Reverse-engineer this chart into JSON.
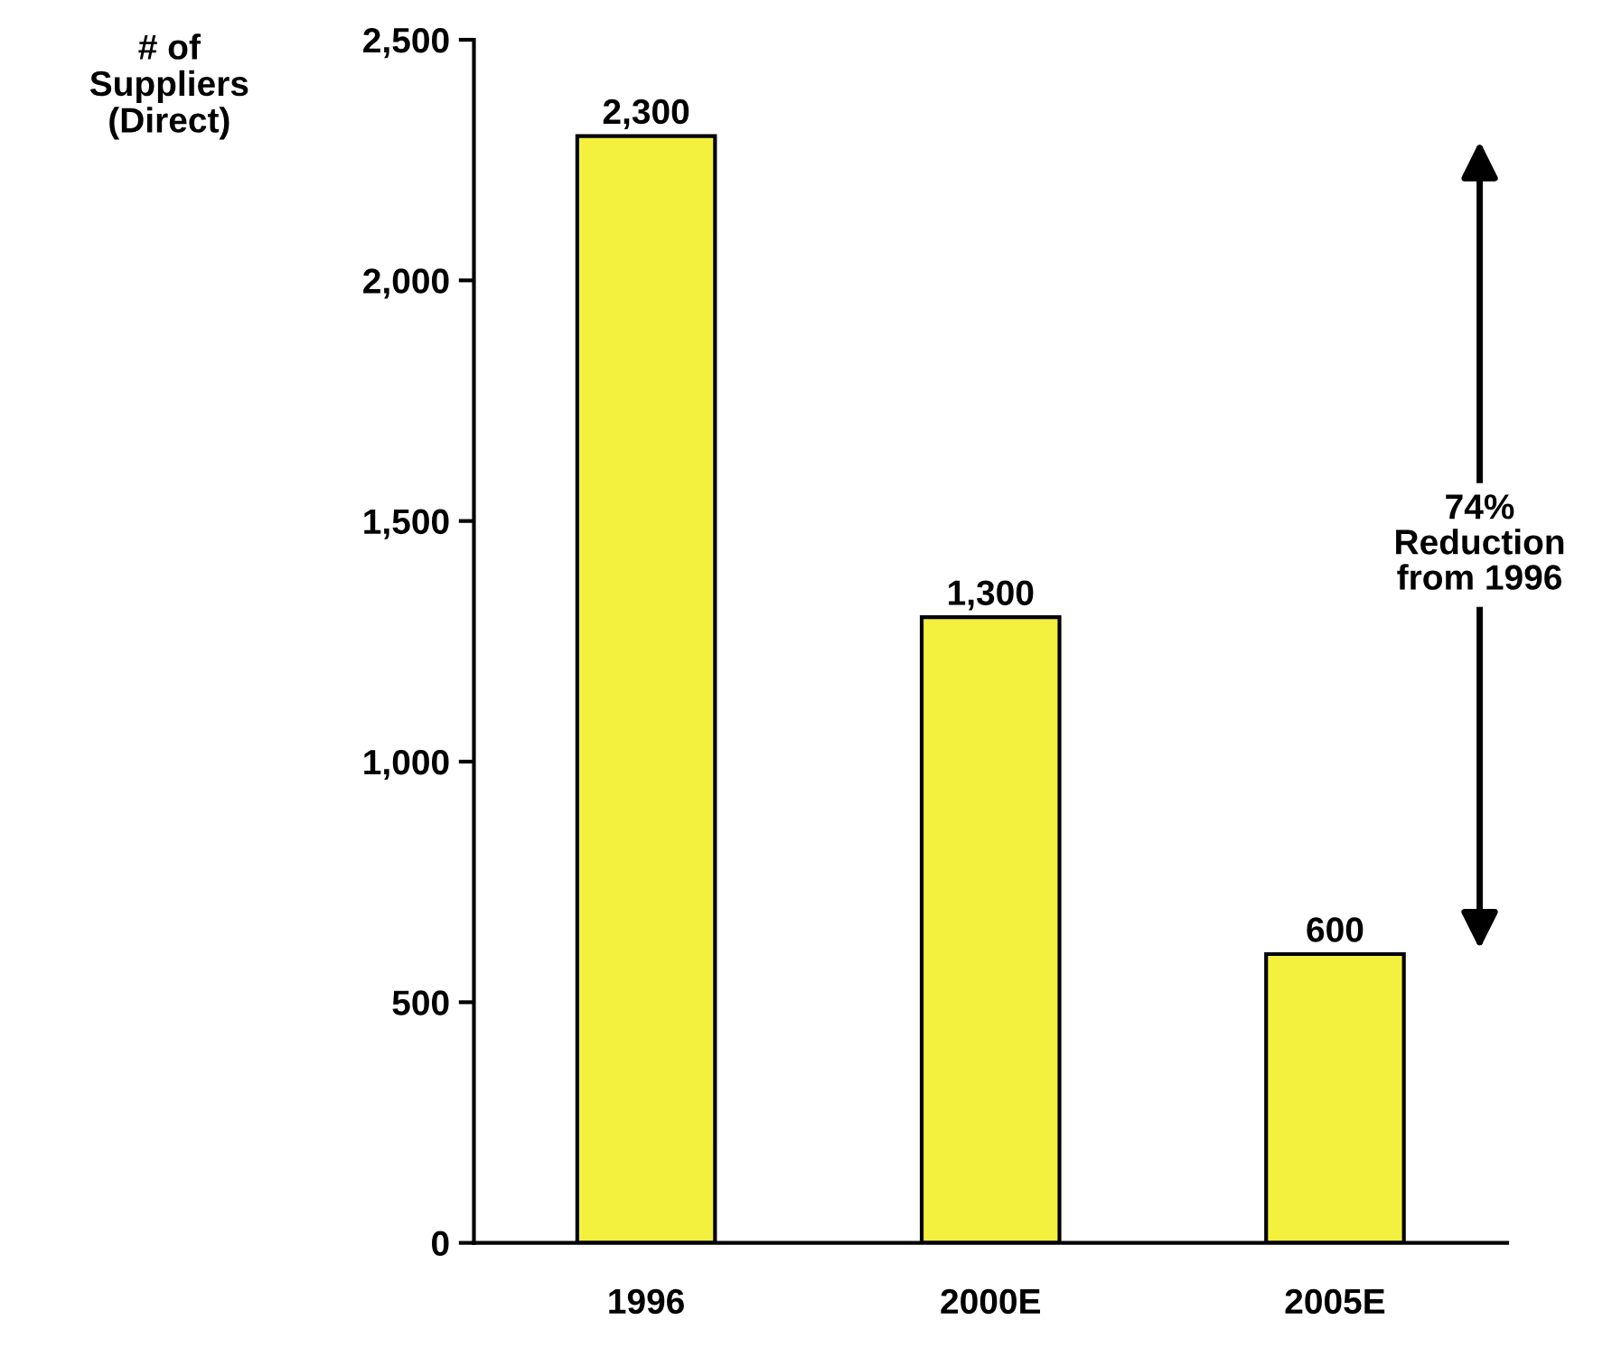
{
  "chart_data": {
    "type": "bar",
    "ylabel": "# of\nSuppliers\n(Direct)",
    "categories": [
      "1996",
      "2000E",
      "2005E"
    ],
    "values": [
      2300,
      1300,
      600
    ],
    "value_labels": [
      "2,300",
      "1,300",
      "600"
    ],
    "color": "#f4f03e",
    "ylim": [
      0,
      2500
    ],
    "yticks": [
      {
        "value": 0,
        "label": "0"
      },
      {
        "value": 500,
        "label": "500"
      },
      {
        "value": 1000,
        "label": "1,000"
      },
      {
        "value": 1500,
        "label": "1,500"
      },
      {
        "value": 2000,
        "label": "2,000"
      },
      {
        "value": 2500,
        "label": "2,500"
      }
    ],
    "grid": false,
    "annotations": [
      "74%\nReduction\nfrom 1996"
    ]
  }
}
